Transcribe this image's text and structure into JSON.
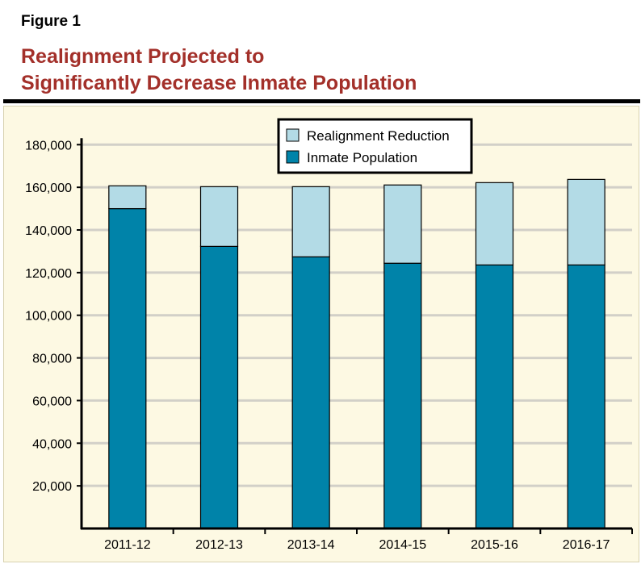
{
  "figure_label": "Figure 1",
  "chart_data": {
    "type": "bar",
    "stacked": true,
    "title_lines": [
      "Realignment Projected to",
      "Significantly Decrease Inmate Population"
    ],
    "xlabel": "",
    "ylabel": "",
    "categories": [
      "2011-12",
      "2012-13",
      "2013-14",
      "2014-15",
      "2015-16",
      "2016-17"
    ],
    "series": [
      {
        "name": "Inmate Population",
        "color": "#0083a9",
        "values": [
          150000,
          132300,
          127400,
          124400,
          123600,
          123600
        ]
      },
      {
        "name": "Realignment Reduction",
        "color": "#b3dbe6",
        "values": [
          10700,
          28000,
          32900,
          36700,
          38600,
          40100
        ]
      }
    ],
    "ylim": [
      0,
      180000
    ],
    "yticks": [
      20000,
      40000,
      60000,
      80000,
      100000,
      120000,
      140000,
      160000,
      180000
    ],
    "ytick_labels": [
      "20,000",
      "40,000",
      "60,000",
      "80,000",
      "100,000",
      "120,000",
      "140,000",
      "160,000",
      "180,000"
    ],
    "grid": true,
    "legend_position": "top-center",
    "legend_order": [
      "Realignment Reduction",
      "Inmate Population"
    ],
    "background_color": "#fdf9e3",
    "title_color": "#a3302a"
  }
}
